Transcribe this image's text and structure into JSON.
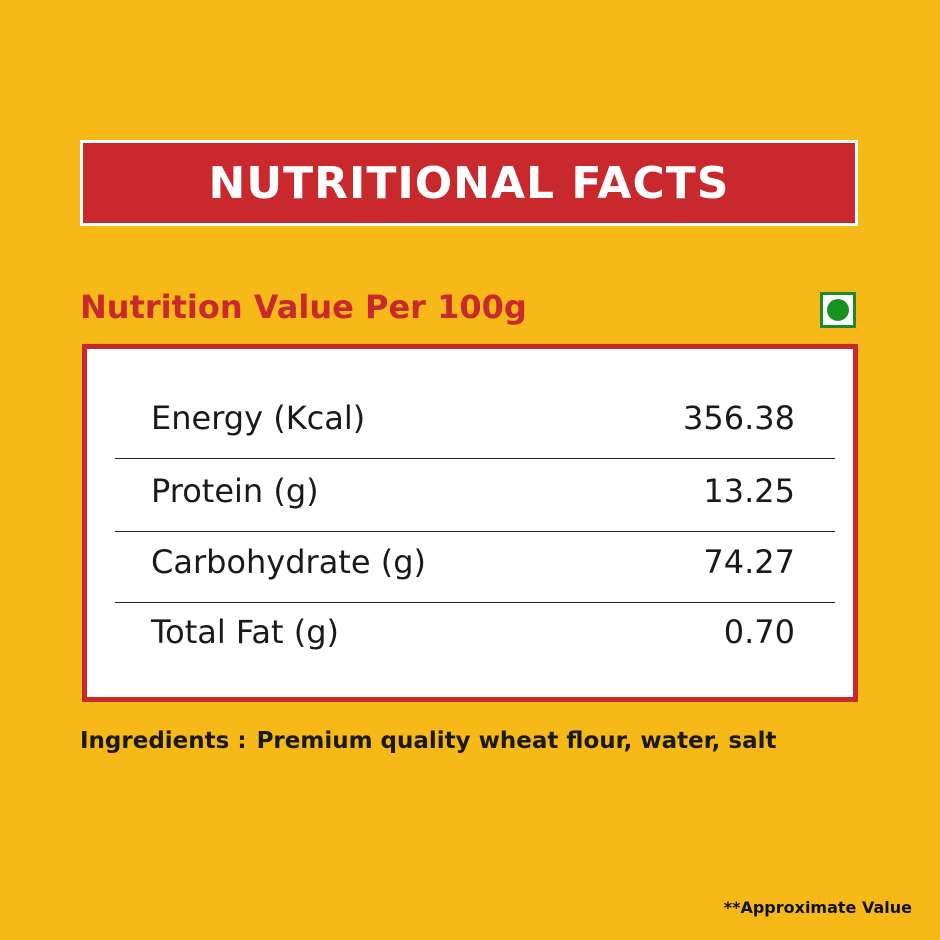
{
  "header": {
    "title": "NUTRITIONAL FACTS"
  },
  "subtitle": "Nutrition Value Per 100g",
  "table": {
    "rows": [
      [
        "Energy (Kcal)",
        "356.38"
      ],
      [
        "Protein (g)",
        "13.25"
      ],
      [
        "Carbohydrate (g)",
        "74.27"
      ],
      [
        "Total Fat (g)",
        "0.70"
      ]
    ]
  },
  "ingredients": {
    "label": "Ingredients :",
    "text": "Premium quality wheat flour, water, salt"
  },
  "footnote": "**Approximate Value"
}
